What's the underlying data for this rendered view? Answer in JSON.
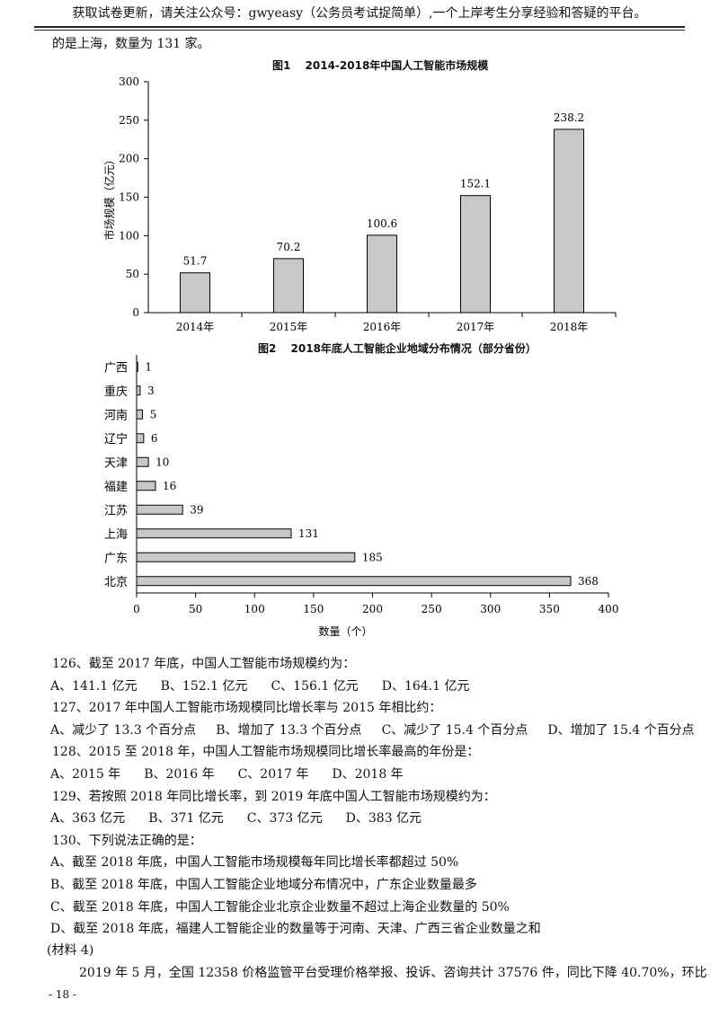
{
  "header": {
    "text": "获取试卷更新，请关注公众号：gwyeasy（公务员考试捉简单）,一个上岸考生分享经验和答疑的平台。"
  },
  "intro": "的是上海，数量为 131 家。",
  "chart1": {
    "title": "图1　 2014-2018年中国人工智能市场规模",
    "chart_data": {
      "type": "bar",
      "categories": [
        "2014年",
        "2015年",
        "2016年",
        "2017年",
        "2018年"
      ],
      "values": [
        51.7,
        70.2,
        100.6,
        152.1,
        238.2
      ],
      "value_labels": [
        "51.7",
        "70.2",
        "100.6",
        "152.1",
        "238.2"
      ],
      "ylabel": "市场规模（亿元）",
      "ylim": [
        0,
        300
      ],
      "yticks": [
        "0",
        "50",
        "100",
        "150",
        "200",
        "250",
        "300"
      ]
    }
  },
  "chart2": {
    "title": "图2　 2018年底人工智能企业地域分布情况（部分省份）",
    "chart_data": {
      "type": "bar",
      "orientation": "horizontal",
      "categories": [
        "广西",
        "重庆",
        "河南",
        "辽宁",
        "天津",
        "福建",
        "江苏",
        "上海",
        "广东",
        "北京"
      ],
      "values": [
        1,
        3,
        5,
        6,
        10,
        16,
        39,
        131,
        185,
        368
      ],
      "value_labels": [
        "1",
        "3",
        "5",
        "6",
        "10",
        "16",
        "39",
        "131",
        "185",
        "368"
      ],
      "xlabel": "数量（个）",
      "xlim": [
        0,
        400
      ],
      "xticks": [
        "0",
        "50",
        "100",
        "150",
        "200",
        "250",
        "300",
        "350",
        "400"
      ]
    }
  },
  "questions": [
    {
      "stem": "126、截至 2017 年底，中国人工智能市场规模约为：",
      "options": [
        "A、141.1 亿元",
        "B、152.1 亿元",
        "C、156.1 亿元",
        "D、164.1 亿元"
      ]
    },
    {
      "stem": "127、2017 年中国人工智能市场规模同比增长率与 2015 年相比约：",
      "options": [
        "A、减少了 13.3 个百分点",
        "B、增加了 13.3 个百分点",
        "C、减少了 15.4 个百分点",
        "D、增加了 15.4 个百分点"
      ]
    },
    {
      "stem": "128、2015 至 2018 年，中国人工智能市场规模同比增长率最高的年份是：",
      "options": [
        "A、2015 年",
        "B、2016 年",
        "C、2017 年",
        "D、2018 年"
      ]
    },
    {
      "stem": "129、若按照 2018 年同比增长率，到 2019 年底中国人工智能市场规模约为：",
      "options": [
        "A、363 亿元",
        "B、371 亿元",
        "C、373 亿元",
        "D、383 亿元"
      ]
    },
    {
      "stem": "130、下列说法正确的是：",
      "options": [
        "A、截至 2018 年底，中国人工智能市场规模每年同比增长率都超过 50%",
        "B、截至 2018 年底，中国人工智能企业地域分布情况中，广东企业数量最多",
        "C、截至 2018 年底，中国人工智能企业北京企业数量不超过上海企业数量的 50%",
        "D、截至 2018 年底，福建人工智能企业的数量等于河南、天津、广西三省企业数量之和"
      ]
    }
  ],
  "material_label": "(材料 4)",
  "material_text": "2019 年 5 月，全国 12358 价格监管平台受理价格举报、投诉、咨询共计 37576 件，同比下降 40.70%，环比",
  "footer": "- 18 -"
}
